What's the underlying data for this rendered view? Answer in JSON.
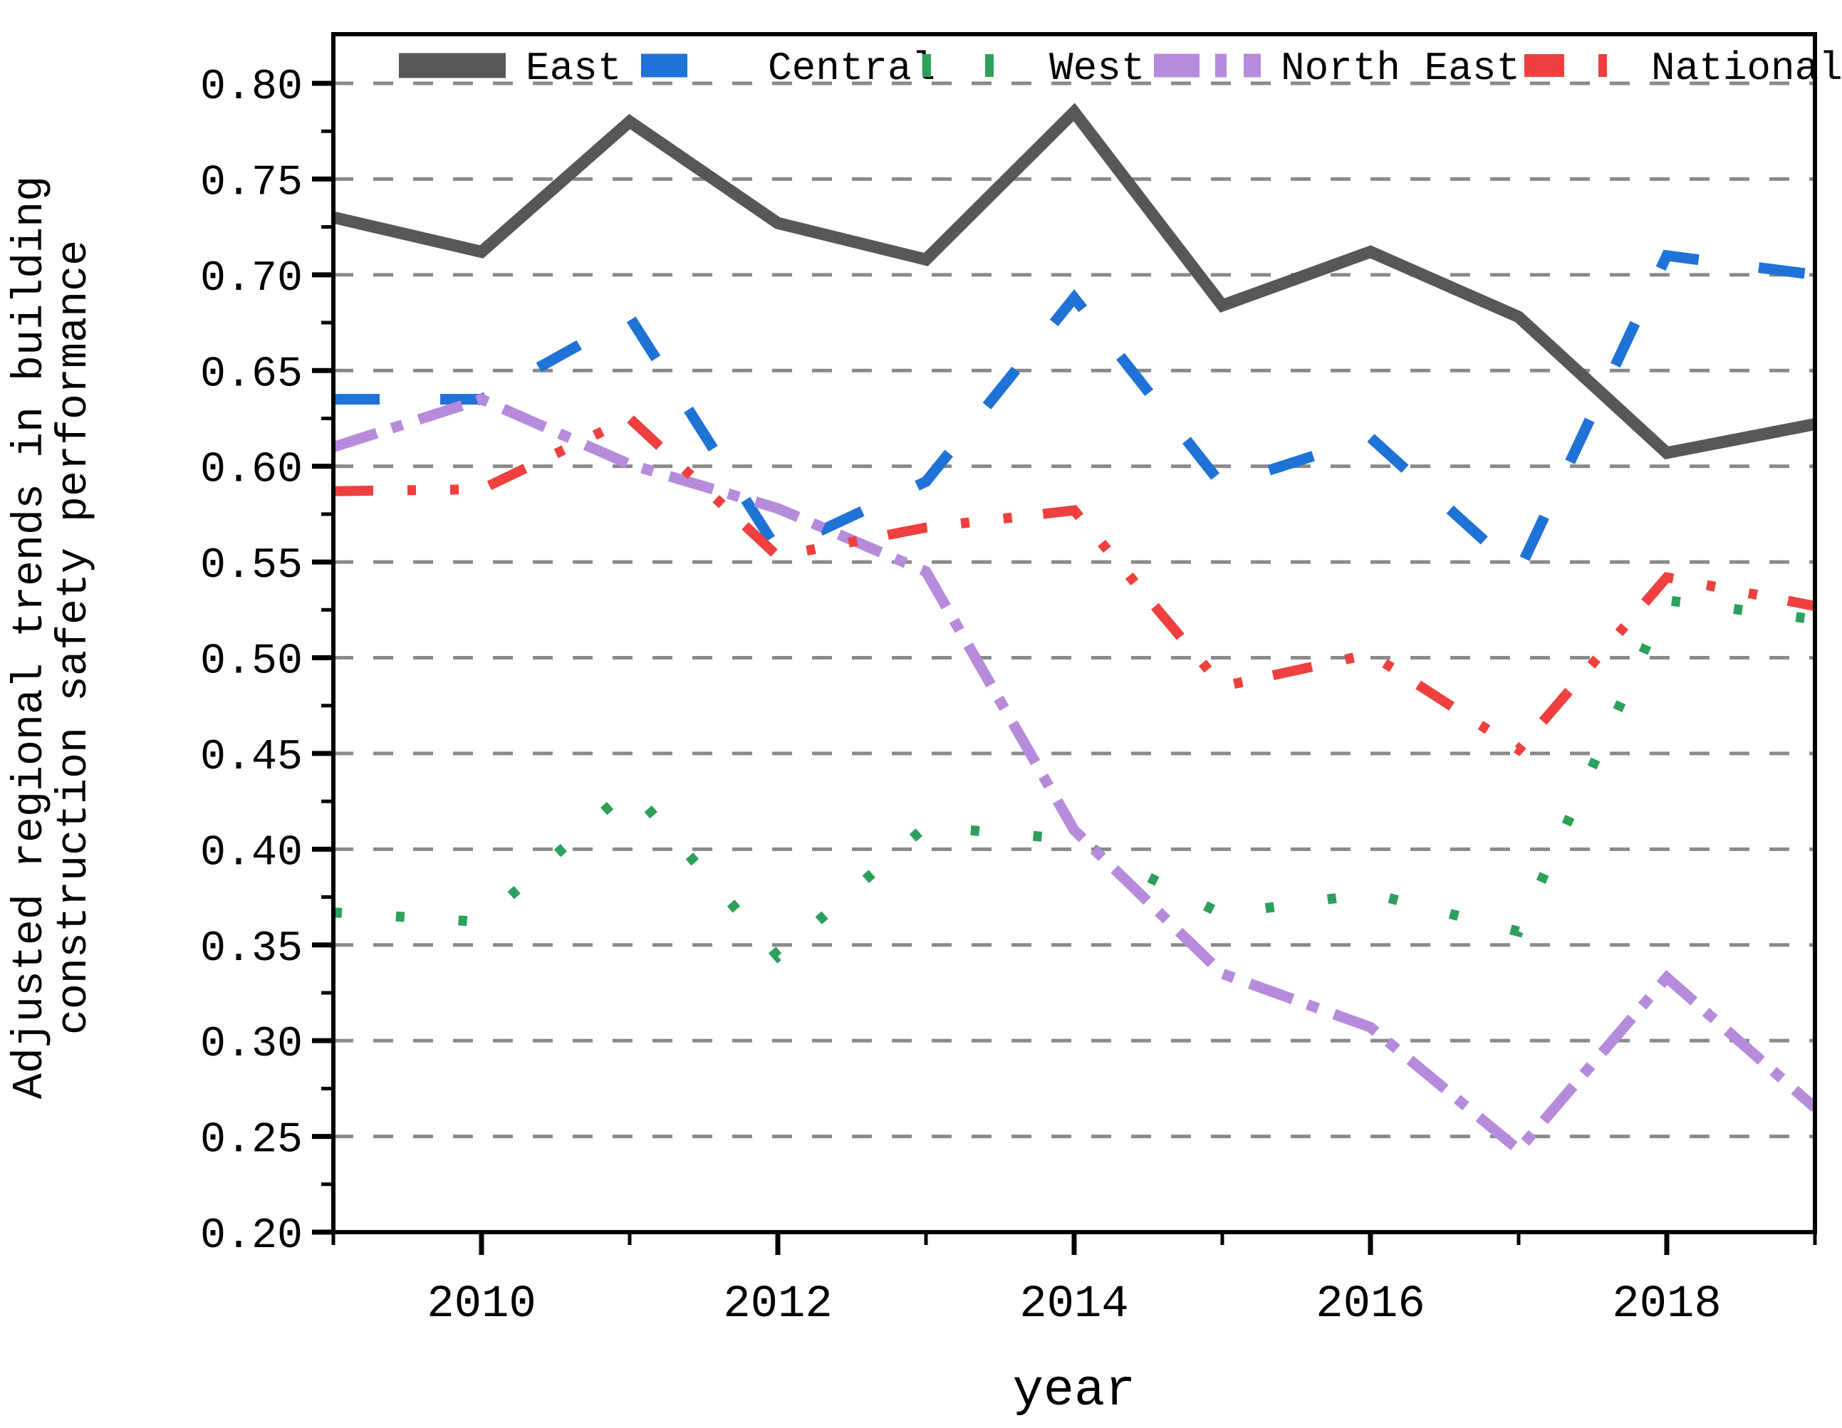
{
  "chart_data": {
    "type": "line",
    "title": "",
    "xlabel": "year",
    "ylabel": "Adjusted regional trends in building construction safety performance",
    "ylabel_lines": [
      "Adjusted regional trends in building",
      "construction safety performance"
    ],
    "x": [
      2009,
      2010,
      2011,
      2012,
      2013,
      2014,
      2015,
      2016,
      2017,
      2018,
      2019
    ],
    "xlim": [
      2009,
      2019
    ],
    "ylim": [
      0.2,
      0.825
    ],
    "x_ticks": [
      2010,
      2012,
      2014,
      2016,
      2018
    ],
    "x_tick_labels": [
      "2010",
      "2012",
      "2014",
      "2016",
      "2018"
    ],
    "x_minor_ticks": [
      2009,
      2011,
      2013,
      2015,
      2017,
      2019
    ],
    "y_ticks": [
      0.8,
      0.75,
      0.7,
      0.65,
      0.6,
      0.55,
      0.5,
      0.45,
      0.4,
      0.35,
      0.3,
      0.25,
      0.2
    ],
    "y_tick_labels": [
      "0.80",
      "0.75",
      "0.70",
      "0.65",
      "0.60",
      "0.55",
      "0.50",
      "0.45",
      "0.40",
      "0.35",
      "0.30",
      "0.25",
      "0.20"
    ],
    "y_minor_ticks": [
      0.775,
      0.725,
      0.675,
      0.625,
      0.575,
      0.525,
      0.475,
      0.425,
      0.375,
      0.325,
      0.275,
      0.225
    ],
    "grid": {
      "axis": "y",
      "style": "dashed",
      "color": "#8a8a8a",
      "on": true
    },
    "legend": {
      "position": "top-inside-row",
      "entries": [
        "East",
        "Central",
        "West",
        "North East",
        "National"
      ]
    },
    "series": [
      {
        "name": "East",
        "color": "#575757",
        "style": "solid",
        "linewidth": 17,
        "dash": [],
        "values": [
          0.73,
          0.712,
          0.78,
          0.727,
          0.708,
          0.785,
          0.684,
          0.712,
          0.678,
          0.607,
          0.622
        ]
      },
      {
        "name": "Central",
        "color": "#1f72d6",
        "style": "dashed",
        "linewidth": 15,
        "dash": [
          65,
          85
        ],
        "values": [
          0.635,
          0.635,
          0.678,
          0.556,
          0.592,
          0.688,
          0.59,
          0.615,
          0.545,
          0.71,
          0.7
        ]
      },
      {
        "name": "West",
        "color": "#2da05c",
        "style": "dotted",
        "linewidth": 14,
        "dash": [
          12,
          76
        ],
        "values": [
          0.367,
          0.362,
          0.432,
          0.344,
          0.412,
          0.405,
          0.366,
          0.377,
          0.357,
          0.53,
          0.52
        ]
      },
      {
        "name": "North East",
        "color": "#b68bdc",
        "style": "dashdot",
        "linewidth": 15,
        "dash": [
          64,
          22,
          16,
          24
        ],
        "values": [
          0.61,
          0.635,
          0.601,
          0.578,
          0.545,
          0.41,
          0.335,
          0.307,
          0.243,
          0.333,
          0.265
        ]
      },
      {
        "name": "National",
        "color": "#ef3f3f",
        "style": "dashdotdot",
        "linewidth": 14,
        "dash": [
          56,
          48,
          12,
          48,
          12,
          44
        ],
        "values": [
          0.587,
          0.588,
          0.625,
          0.553,
          0.568,
          0.577,
          0.485,
          0.502,
          0.452,
          0.542,
          0.527
        ]
      }
    ]
  }
}
